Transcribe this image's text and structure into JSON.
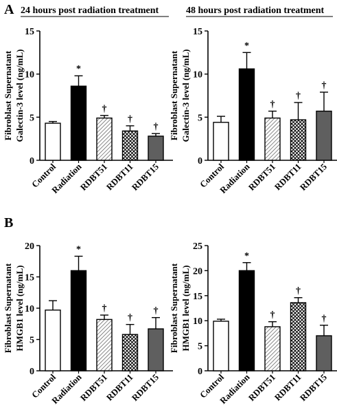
{
  "chart_data": [
    {
      "type": "bar",
      "panel_label": "A",
      "title": "24 hours post radiation treatment",
      "ylabel_line1": "Fibroblast Supernatant",
      "ylabel_line2": "Galectin-3 level (ng/mL)",
      "categories": [
        "Control",
        "Radiation",
        "RDBT51",
        "RDBT11",
        "RDBT15"
      ],
      "values": [
        4.3,
        8.6,
        4.9,
        3.4,
        2.8
      ],
      "errors": [
        0.2,
        1.2,
        0.3,
        0.6,
        0.3
      ],
      "annotations": [
        "",
        "*",
        "†",
        "†",
        "†"
      ],
      "ylim": [
        0,
        15
      ],
      "yticks": [
        0,
        5,
        10,
        15
      ],
      "ytick_labels": [
        "0",
        "5",
        "10",
        "15"
      ]
    },
    {
      "type": "bar",
      "panel_label": "",
      "title": "48 hours post radiation treatment",
      "ylabel_line1": "Fibroblast Supernatant",
      "ylabel_line2": "Galectin-3 level (ng/mL)",
      "categories": [
        "Control",
        "Radiation",
        "RDBT51",
        "RDBT11",
        "RDBT15"
      ],
      "values": [
        4.4,
        10.6,
        4.9,
        4.7,
        5.7
      ],
      "errors": [
        0.7,
        1.9,
        0.8,
        2.0,
        2.2
      ],
      "annotations": [
        "",
        "*",
        "†",
        "†",
        "†"
      ],
      "ylim": [
        0,
        15
      ],
      "yticks": [
        0,
        5,
        10,
        15
      ],
      "ytick_labels": [
        "0",
        "5",
        "10",
        "15"
      ]
    },
    {
      "type": "bar",
      "panel_label": "B",
      "title": "",
      "ylabel_line1": "Fibroblast Supernatant",
      "ylabel_line2": "HMGB1 level (ng/mL)",
      "categories": [
        "Control",
        "Radiation",
        "RDBT51",
        "RDBT11",
        "RDBT15"
      ],
      "values": [
        9.7,
        16.0,
        8.2,
        5.8,
        6.7
      ],
      "errors": [
        1.5,
        2.3,
        0.7,
        1.6,
        1.8
      ],
      "annotations": [
        "",
        "*",
        "†",
        "†",
        "†"
      ],
      "ylim": [
        0,
        20
      ],
      "yticks": [
        0,
        5,
        10,
        15,
        20
      ],
      "ytick_labels": [
        "0",
        "5",
        "10",
        "15",
        "20"
      ]
    },
    {
      "type": "bar",
      "panel_label": "",
      "title": "",
      "ylabel_line1": "Fibroblast Supernatant",
      "ylabel_line2": "HMGB1 level (ng/mL)",
      "categories": [
        "Control",
        "Radiation",
        "RDBT51",
        "RDBT11",
        "RDBT15"
      ],
      "values": [
        9.9,
        20.0,
        8.8,
        13.6,
        7.0
      ],
      "errors": [
        0.4,
        1.6,
        1.0,
        1.0,
        2.1
      ],
      "annotations": [
        "",
        "*",
        "†",
        "†",
        "†"
      ],
      "ylim": [
        0,
        25
      ],
      "yticks": [
        0,
        5,
        10,
        15,
        20,
        25
      ],
      "ytick_labels": [
        "0",
        "5",
        "10",
        "15",
        "20",
        "25"
      ]
    }
  ]
}
